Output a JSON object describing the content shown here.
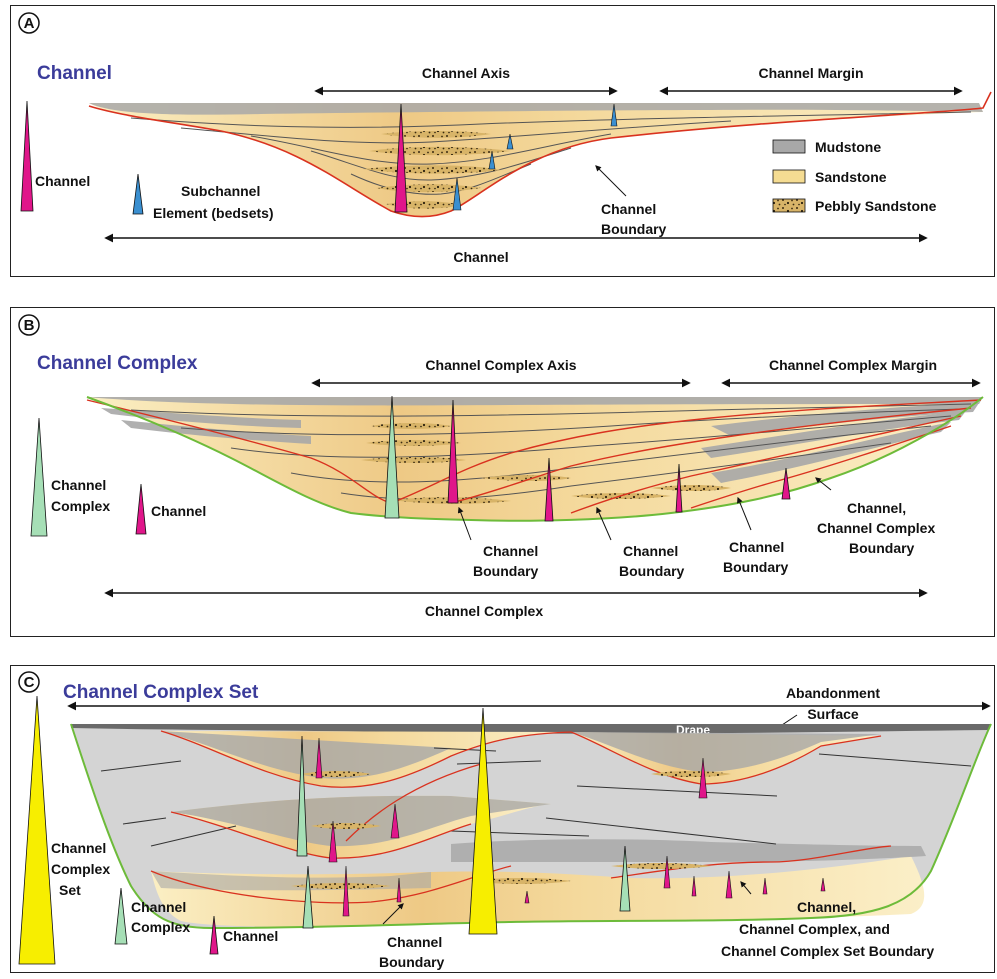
{
  "panel_a": {
    "letter": "A",
    "title": "Channel",
    "axis_label": "Channel Axis",
    "margin_label": "Channel Margin",
    "width_label": "Channel",
    "left_channel_label": "Channel",
    "subchannel_label_1": "Subchannel",
    "subchannel_label_2": "Element (bedsets)",
    "boundary_label_1": "Channel",
    "boundary_label_2": "Boundary",
    "legend": [
      {
        "label": "Mudstone",
        "color": "#a8a8a8"
      },
      {
        "label": "Sandstone",
        "color": "#f5dc92"
      },
      {
        "label": "Pebbly Sandstone",
        "color": "#d9b56c"
      }
    ]
  },
  "panel_b": {
    "letter": "B",
    "title": "Channel Complex",
    "axis_label": "Channel Complex Axis",
    "margin_label": "Channel Complex Margin",
    "width_label": "Channel Complex",
    "complex_label_1": "Channel",
    "complex_label_2": "Complex",
    "channel_label": "Channel",
    "boundary_1a": "Channel",
    "boundary_1b": "Boundary",
    "boundary_2a": "Channel",
    "boundary_2b": "Boundary",
    "boundary_3a": "Channel",
    "boundary_3b": "Boundary",
    "boundary_4a": "Channel,",
    "boundary_4b": "Channel Complex",
    "boundary_4c": "Boundary"
  },
  "panel_c": {
    "letter": "C",
    "title": "Channel Complex Set",
    "abandonment_1": "Abandonment",
    "abandonment_2": "Surface",
    "drape_label": "Drape",
    "set_label_1": "Channel",
    "set_label_2": "Complex",
    "set_label_3": "Set",
    "complex_label_1": "Channel",
    "complex_label_2": "Complex",
    "channel_label": "Channel",
    "boundary_1a": "Channel",
    "boundary_1b": "Boundary",
    "boundary_2a": "Channel,",
    "boundary_2b": "Channel Complex, and",
    "boundary_2c": "Channel Complex Set Boundary"
  },
  "colors": {
    "title_blue": "#3b3c9a",
    "channel_magenta": "#e0168a",
    "subchannel_blue": "#3a8fd0",
    "complex_green": "#a6dfb6",
    "set_yellow": "#f7ee00",
    "boundary_red": "#d9321f",
    "base_green": "#6dbb3a",
    "mudstone": "#a8a8a8",
    "sandstone": "#f5dc92"
  }
}
